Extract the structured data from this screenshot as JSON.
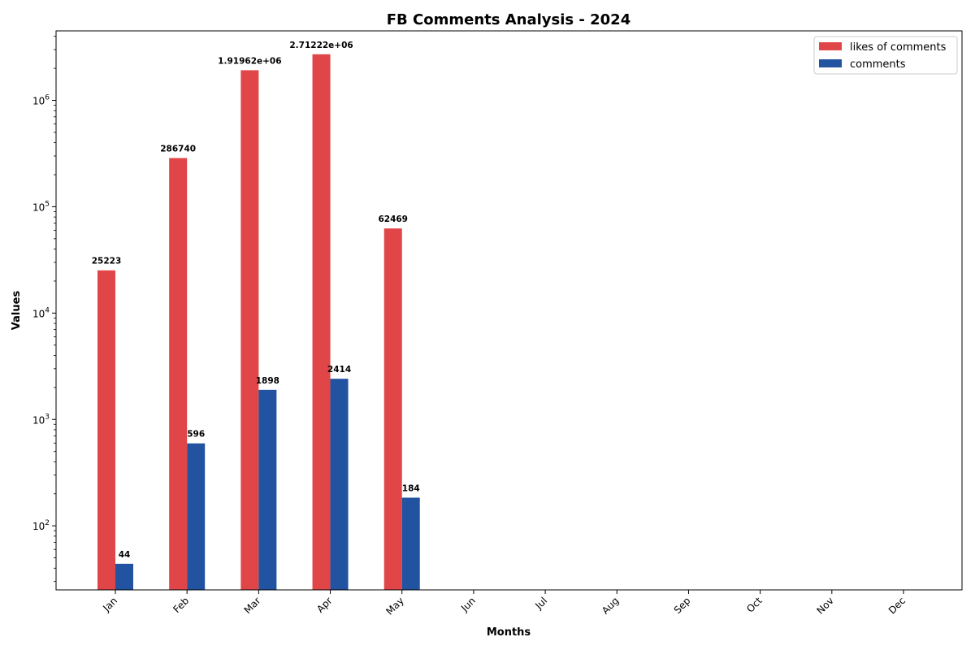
{
  "chart_data": {
    "type": "bar",
    "title": "FB Comments Analysis - 2024",
    "xlabel": "Months",
    "ylabel": "Values",
    "yscale": "log",
    "ylim": [
      25,
      4500000
    ],
    "grid": false,
    "legend_position": "top-right",
    "categories": [
      "Jan",
      "Feb",
      "Mar",
      "Apr",
      "May",
      "Jun",
      "Jul",
      "Aug",
      "Sep",
      "Oct",
      "Nov",
      "Dec"
    ],
    "series": [
      {
        "name": "likes of comments",
        "color": "#e04548",
        "values": [
          25223,
          286740,
          1919620,
          2712220,
          62469,
          null,
          null,
          null,
          null,
          null,
          null,
          null
        ],
        "labels": [
          "25223",
          "286740",
          "1.91962e+06",
          "2.71222e+06",
          "62469"
        ]
      },
      {
        "name": "comments",
        "color": "#2253a1",
        "values": [
          44,
          596,
          1898,
          2414,
          184,
          null,
          null,
          null,
          null,
          null,
          null,
          null
        ],
        "labels": [
          "44",
          "596",
          "1898",
          "2414",
          "184"
        ]
      }
    ],
    "y_ticks": [
      {
        "base": "10",
        "exp": "2",
        "value": 100
      },
      {
        "base": "10",
        "exp": "3",
        "value": 1000
      },
      {
        "base": "10",
        "exp": "4",
        "value": 10000
      },
      {
        "base": "10",
        "exp": "5",
        "value": 100000
      },
      {
        "base": "10",
        "exp": "6",
        "value": 1000000
      }
    ]
  }
}
